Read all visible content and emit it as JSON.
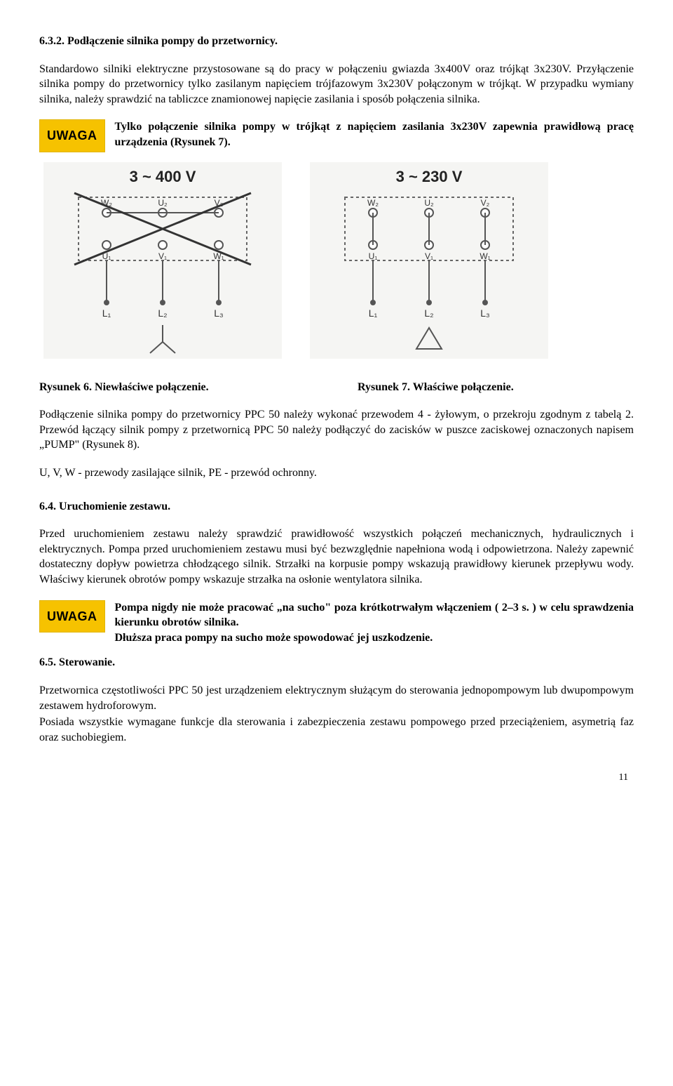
{
  "section632": {
    "heading": "6.3.2. Podłączenie silnika pompy do przetwornicy.",
    "p1": "Standardowo silniki elektryczne przystosowane są do pracy w połączeniu gwiazda 3x400V oraz trójkąt 3x230V. Przyłączenie silnika pompy do przetwornicy tylko zasilanym napięciem trójfazowym 3x230V połączonym w trójkąt. W przypadku wymiany silnika, należy sprawdzić na tabliczce znamionowej napięcie zasilania i sposób połączenia silnika."
  },
  "uwaga1": {
    "badge": "UWAGA",
    "text": "Tylko połączenie silnika pompy w trójkąt z napięciem zasilania 3x230V zapewnia prawidłową pracę urządzenia (Rysunek 7)."
  },
  "diagrams": {
    "left": {
      "voltage_label": "3 ~ 400 V",
      "terminal_labels_top": [
        "W₂",
        "U₂",
        "V₂"
      ],
      "terminal_labels_bot": [
        "U₁",
        "V₁",
        "W₁"
      ],
      "lead_labels": [
        "L₁",
        "L₂",
        "L₃"
      ],
      "shape": "star",
      "crossed": true,
      "box_color": "#666",
      "line_color": "#555",
      "bg": "#f5f5f3"
    },
    "right": {
      "voltage_label": "3 ~ 230 V",
      "terminal_labels_top": [
        "W₂",
        "U₂",
        "V₂"
      ],
      "terminal_labels_bot": [
        "U₁",
        "V₁",
        "W₁"
      ],
      "lead_labels": [
        "L₁",
        "L₂",
        "L₃"
      ],
      "shape": "delta",
      "crossed": false,
      "box_color": "#666",
      "line_color": "#555",
      "bg": "#f5f5f3"
    }
  },
  "captions": {
    "left": "Rysunek 6. Niewłaściwe połączenie.",
    "right": "Rysunek 7. Właściwe połączenie."
  },
  "after_captions": {
    "p1": "Podłączenie silnika pompy do przetwornicy PPC 50 należy wykonać przewodem 4 - żyłowym, o przekroju zgodnym z tabelą 2. Przewód łączący silnik pompy z przetwornicą PPC 50 należy podłączyć do zacisków w puszce zaciskowej oznaczonych napisem „PUMP\" (Rysunek 8).",
    "p2": "U, V, W - przewody zasilające silnik, PE - przewód ochronny."
  },
  "section64": {
    "heading": "6.4. Uruchomienie zestawu.",
    "p1": "Przed uruchomieniem zestawu należy sprawdzić prawidłowość wszystkich połączeń mechanicznych, hydraulicznych i elektrycznych. Pompa przed uruchomieniem zestawu musi być bezwzględnie napełniona wodą i odpowietrzona. Należy zapewnić dostateczny dopływ powietrza chłodzącego silnik. Strzałki na korpusie pompy wskazują prawidłowy kierunek przepływu wody. Właściwy kierunek obrotów pompy wskazuje strzałka na osłonie wentylatora silnika."
  },
  "uwaga2": {
    "badge": "UWAGA",
    "line1": "Pompa nigdy nie może pracować „na sucho\" poza krótkotrwałym włączeniem ( 2–3 s. ) w celu sprawdzenia kierunku obrotów silnika.",
    "line2": "Dłuższa praca pompy na sucho może spowodować jej uszkodzenie."
  },
  "section65": {
    "heading": "6.5. Sterowanie.",
    "p1": "Przetwornica częstotliwości PPC 50 jest urządzeniem elektrycznym służącym do sterowania jednopompowym lub dwupompowym zestawem hydroforowym.",
    "p2": "Posiada wszystkie wymagane funkcje dla sterowania i zabezpieczenia zestawu pompowego przed przeciążeniem, asymetrią faz oraz suchobiegiem."
  },
  "page_number": "11"
}
